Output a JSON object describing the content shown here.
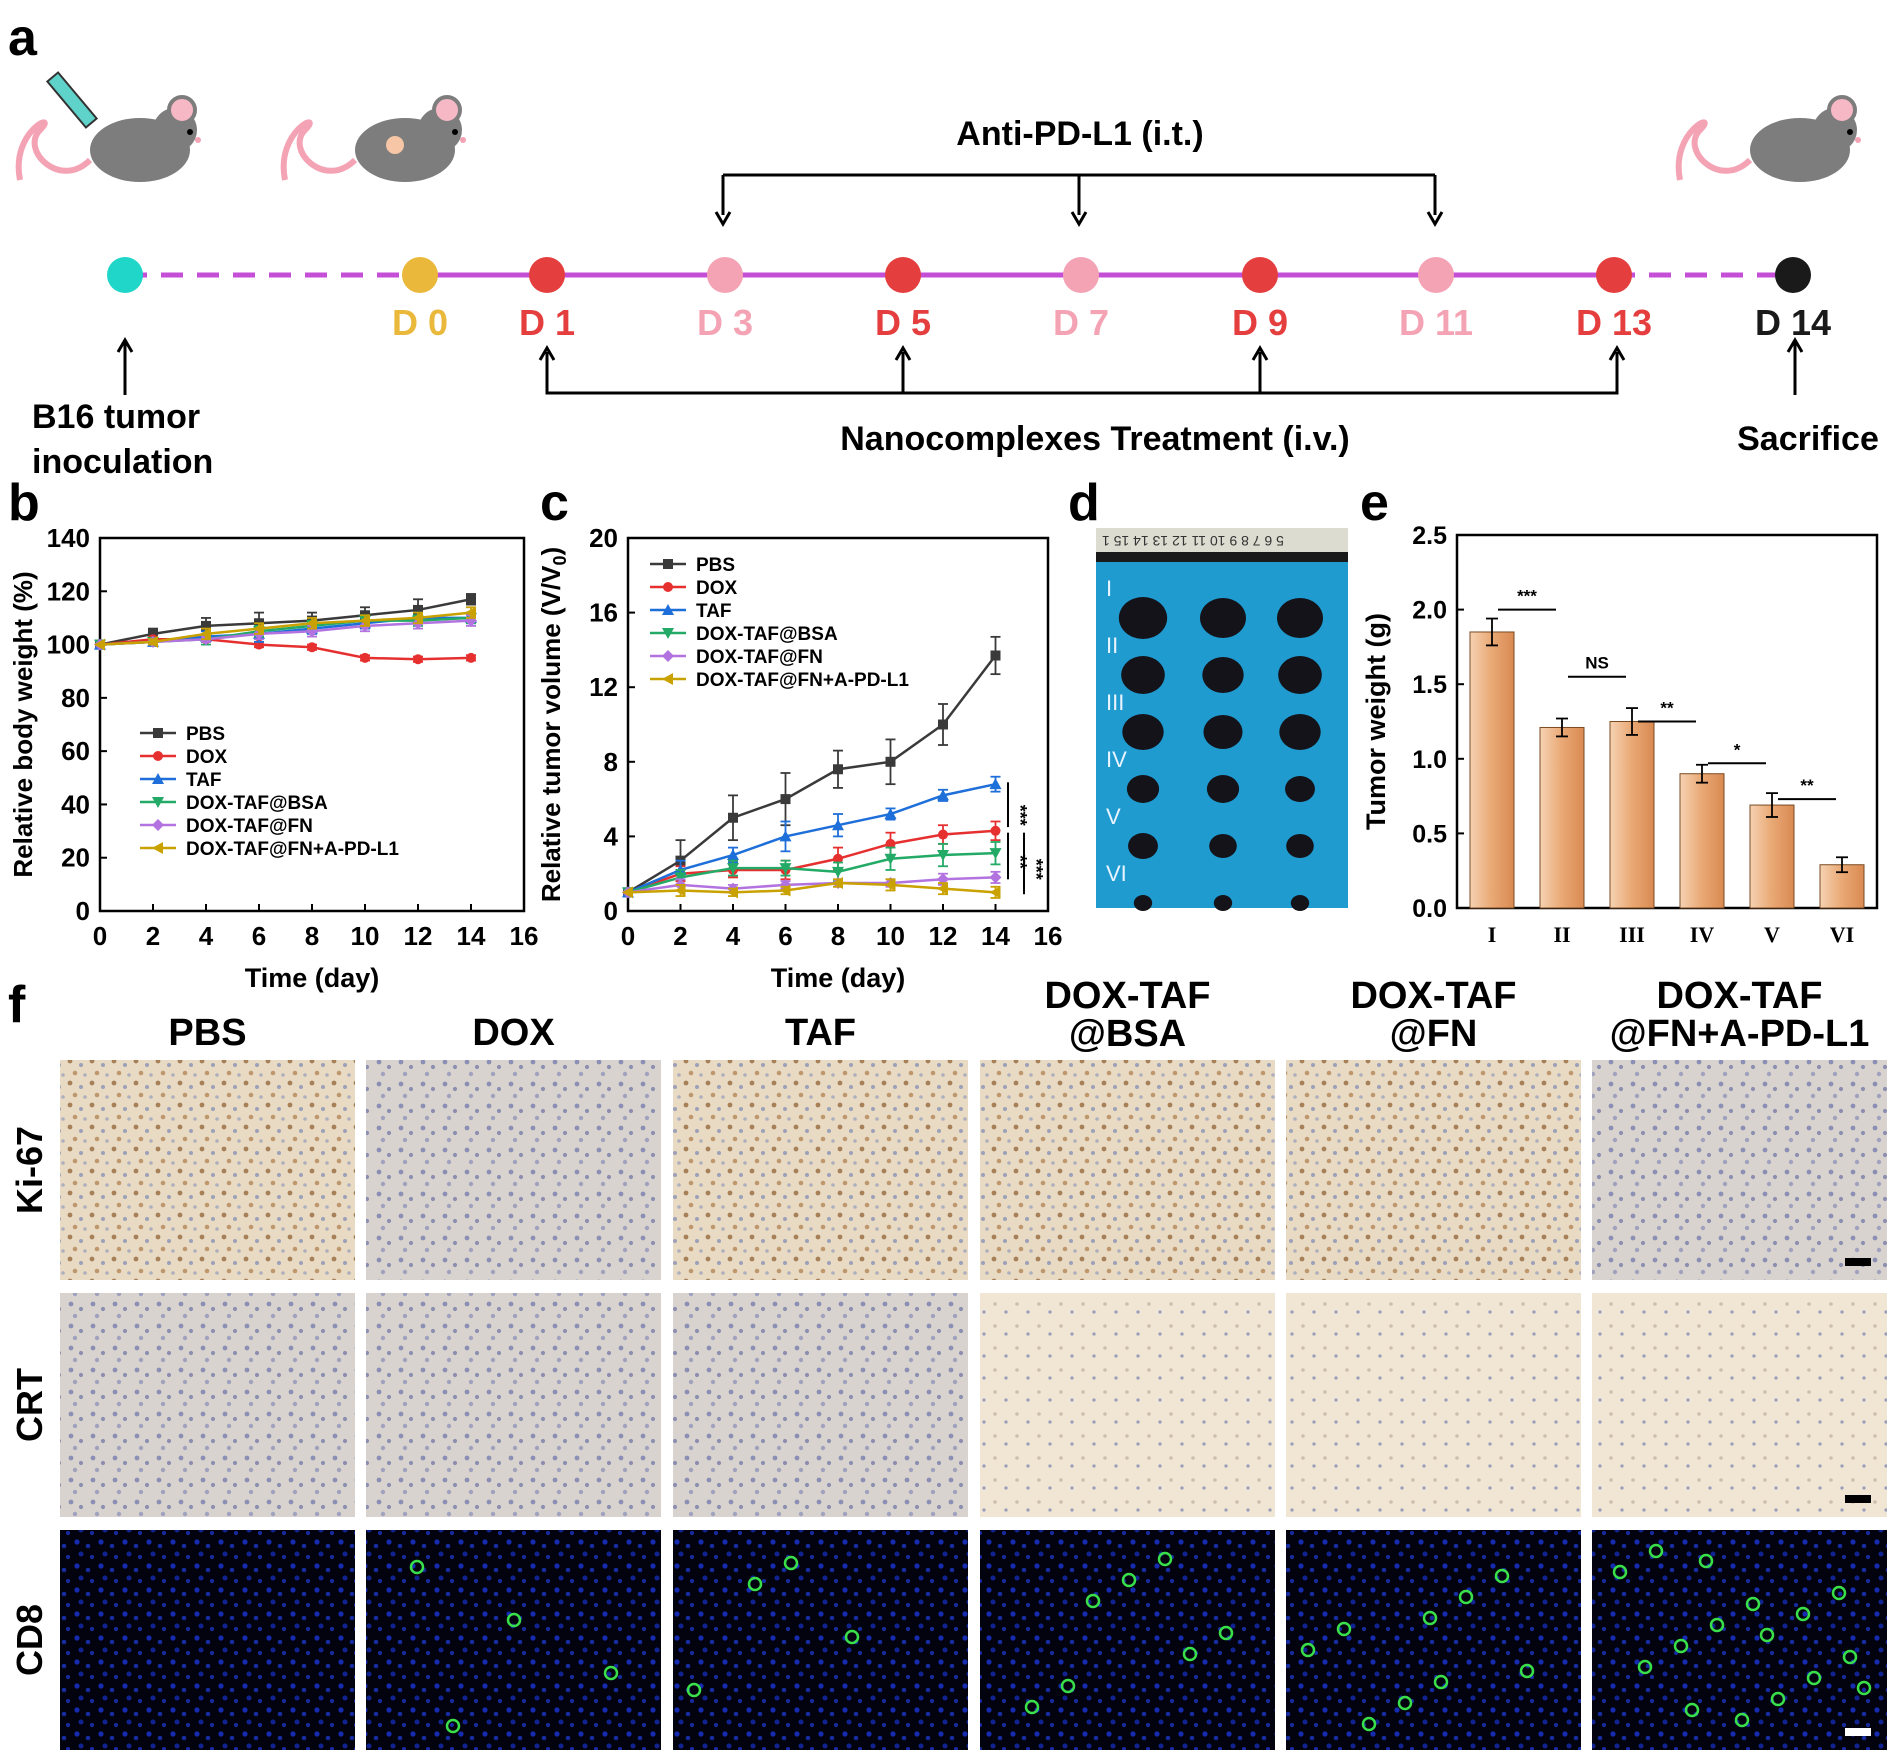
{
  "panel_letters": {
    "a": "a",
    "b": "b",
    "c": "c",
    "d": "d",
    "e": "e",
    "f": "f"
  },
  "timeline": {
    "anti_label": "Anti-PD-L1 (i.t.)",
    "nano_label": "Nanocomplexes Treatment (i.v.)",
    "inoculation_line1": "B16 tumor",
    "inoculation_line2": "inoculation",
    "sacrifice": "Sacrifice",
    "days": [
      {
        "label": "D 0",
        "color": "#eab83a",
        "text_color": "#eab83a"
      },
      {
        "label": "D 1",
        "color": "#e53e3e",
        "text_color": "#e53e3e"
      },
      {
        "label": "D 3",
        "color": "#f4a3b4",
        "text_color": "#f4a3b4"
      },
      {
        "label": "D 5",
        "color": "#e53e3e",
        "text_color": "#e53e3e"
      },
      {
        "label": "D 7",
        "color": "#f4a3b4",
        "text_color": "#f4a3b4"
      },
      {
        "label": "D 9",
        "color": "#e53e3e",
        "text_color": "#e53e3e"
      },
      {
        "label": "D 11",
        "color": "#f4a3b4",
        "text_color": "#f4a3b4"
      },
      {
        "label": "D 13",
        "color": "#e53e3e",
        "text_color": "#e53e3e"
      },
      {
        "label": "D 14",
        "color": "#1a1a1a",
        "text_color": "#1a1a1a"
      }
    ],
    "start_dot_color": "#1fd6c9",
    "line_color": "#c44fd6"
  },
  "series_style": [
    {
      "color": "#3a3a3a",
      "marker": "square"
    },
    {
      "color": "#e63030",
      "marker": "circle"
    },
    {
      "color": "#1e6fd9",
      "marker": "triangle-up"
    },
    {
      "color": "#22aa66",
      "marker": "triangle-down"
    },
    {
      "color": "#b273e0",
      "marker": "diamond"
    },
    {
      "color": "#c9a100",
      "marker": "triangle-left"
    }
  ],
  "chart_data": [
    {
      "panel": "b",
      "type": "line",
      "xlabel": "Time (day)",
      "ylabel": "Relative body weight (%)",
      "xlim": [
        0,
        16
      ],
      "ylim": [
        0,
        140
      ],
      "xticks": [
        0,
        2,
        4,
        6,
        8,
        10,
        12,
        14,
        16
      ],
      "yticks": [
        0,
        20,
        40,
        60,
        80,
        100,
        120,
        140
      ],
      "x": [
        0,
        2,
        4,
        6,
        8,
        10,
        12,
        14
      ],
      "legend_position": "center-left",
      "series": [
        {
          "name": "PBS",
          "values": [
            100,
            104,
            107,
            108,
            109,
            111,
            113,
            117
          ],
          "err": [
            0,
            2,
            3,
            4,
            3,
            3,
            4,
            2
          ]
        },
        {
          "name": "DOX",
          "values": [
            100,
            102,
            102,
            100,
            99,
            95,
            94.5,
            95
          ],
          "err": [
            0,
            1,
            1,
            1,
            1,
            1,
            1,
            1
          ]
        },
        {
          "name": "TAF",
          "values": [
            100,
            101,
            103,
            104,
            106,
            108,
            110,
            110
          ],
          "err": [
            0,
            1,
            2,
            3,
            2,
            2,
            2,
            2
          ]
        },
        {
          "name": "DOX-TAF@BSA",
          "values": [
            100,
            101,
            102,
            105,
            107,
            109,
            109,
            110
          ],
          "err": [
            0,
            1,
            2,
            2,
            2,
            2,
            2,
            2
          ]
        },
        {
          "name": "DOX-TAF@FN",
          "values": [
            100,
            101,
            102,
            104,
            105,
            107,
            108,
            109
          ],
          "err": [
            0,
            1,
            1,
            2,
            2,
            2,
            2,
            2
          ]
        },
        {
          "name": "DOX-TAF@FN+A-PD-L1",
          "values": [
            100,
            101,
            104,
            106,
            108,
            109,
            110,
            112
          ],
          "err": [
            0,
            1,
            2,
            2,
            2,
            2,
            2,
            2
          ]
        }
      ]
    },
    {
      "panel": "c",
      "type": "line",
      "xlabel": "Time (day)",
      "ylabel": "Relative tumor volume (V/V",
      "ylabel_sub": "0",
      "ylabel_end": ")",
      "xlim": [
        0,
        16
      ],
      "ylim": [
        0,
        20
      ],
      "xticks": [
        0,
        2,
        4,
        6,
        8,
        10,
        12,
        14,
        16
      ],
      "yticks": [
        0,
        4,
        8,
        12,
        16,
        20
      ],
      "x": [
        0,
        2,
        4,
        6,
        8,
        10,
        12,
        14
      ],
      "legend_position": "top-left",
      "significance": [
        "***",
        "**",
        "***"
      ],
      "series": [
        {
          "name": "PBS",
          "values": [
            1,
            2.7,
            5,
            6,
            7.6,
            8,
            10,
            13.7
          ],
          "err": [
            0,
            1.1,
            1.2,
            1.4,
            1,
            1.2,
            1.1,
            1
          ]
        },
        {
          "name": "DOX",
          "values": [
            1,
            2,
            2.2,
            2.2,
            2.8,
            3.6,
            4.1,
            4.3
          ],
          "err": [
            0,
            0.4,
            0.4,
            0.5,
            0.6,
            0.6,
            0.5,
            0.5
          ]
        },
        {
          "name": "TAF",
          "values": [
            1,
            2.2,
            3,
            4,
            4.6,
            5.2,
            6.2,
            6.8
          ],
          "err": [
            0,
            0.5,
            0.4,
            0.8,
            0.6,
            0.3,
            0.3,
            0.4
          ]
        },
        {
          "name": "DOX-TAF@BSA",
          "values": [
            1,
            1.8,
            2.3,
            2.3,
            2.1,
            2.8,
            3,
            3.1
          ],
          "err": [
            0,
            0.4,
            0.4,
            0.4,
            0.5,
            0.6,
            0.6,
            0.6
          ]
        },
        {
          "name": "DOX-TAF@FN",
          "values": [
            1,
            1.4,
            1.2,
            1.4,
            1.5,
            1.5,
            1.7,
            1.8
          ],
          "err": [
            0,
            0.3,
            0.2,
            0.2,
            0.2,
            0.2,
            0.3,
            0.3
          ]
        },
        {
          "name": "DOX-TAF@FN+A-PD-L1",
          "values": [
            1,
            1.1,
            1,
            1.1,
            1.5,
            1.4,
            1.2,
            1
          ],
          "err": [
            0,
            0.3,
            0.2,
            0.2,
            0.2,
            0.3,
            0.3,
            0.3
          ]
        }
      ]
    },
    {
      "panel": "e",
      "type": "bar",
      "xlabel": "",
      "ylabel": "Tumor weight (g)",
      "ylim": [
        0,
        2.5
      ],
      "yticks": [
        "0.0",
        "0.5",
        "1.0",
        "1.5",
        "2.0",
        "2.5"
      ],
      "categories": [
        "I",
        "II",
        "III",
        "IV",
        "V",
        "VI"
      ],
      "values": [
        1.85,
        1.21,
        1.25,
        0.9,
        0.69,
        0.29
      ],
      "err": [
        0.09,
        0.06,
        0.09,
        0.06,
        0.08,
        0.05
      ],
      "significance": [
        {
          "from": 0,
          "to": 1,
          "label": "***"
        },
        {
          "from": 1,
          "to": 2,
          "label": "NS"
        },
        {
          "from": 2,
          "to": 3,
          "label": "**"
        },
        {
          "from": 3,
          "to": 4,
          "label": "*"
        },
        {
          "from": 4,
          "to": 5,
          "label": "**"
        }
      ]
    }
  ],
  "photo_d": {
    "row_labels": [
      "I",
      "II",
      "III",
      "IV",
      "V",
      "VI"
    ],
    "ruler_text": "5 6 7 8 9 10 11 12 13 14 15 1"
  },
  "panel_f": {
    "columns": [
      "PBS",
      "DOX",
      "TAF",
      "DOX-TAF|@BSA",
      "DOX-TAF|@FN",
      "DOX-TAF|@FN+A-PD-L1"
    ],
    "rows": [
      "Ki-67",
      "CRT",
      "CD8"
    ]
  }
}
